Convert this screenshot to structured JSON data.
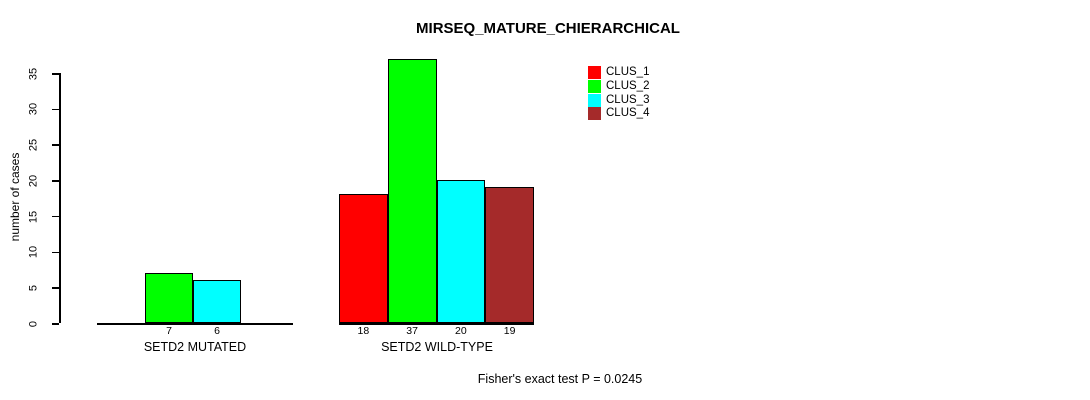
{
  "chart_data": {
    "type": "bar",
    "title": "MIRSEQ_MATURE_CHIERARCHICAL",
    "xlabel": "",
    "ylabel": "number of cases",
    "ylim": [
      0,
      35
    ],
    "yticks": [
      0,
      5,
      10,
      15,
      20,
      25,
      30,
      35
    ],
    "grid": false,
    "legend_position": "top-right",
    "categories": [
      "SETD2 MUTATED",
      "SETD2 WILD-TYPE"
    ],
    "series": [
      {
        "name": "CLUS_1",
        "color": "#ff0000",
        "values": [
          0,
          18
        ],
        "value_labels": [
          "",
          "18"
        ]
      },
      {
        "name": "CLUS_2",
        "color": "#00ff00",
        "values": [
          7,
          37
        ],
        "value_labels": [
          "7",
          "37"
        ]
      },
      {
        "name": "CLUS_3",
        "color": "#00ffff",
        "values": [
          6,
          20
        ],
        "value_labels": [
          "6",
          "20"
        ]
      },
      {
        "name": "CLUS_4",
        "color": "#a52a2a",
        "values": [
          0,
          19
        ],
        "value_labels": [
          "",
          "19"
        ]
      }
    ],
    "bar_border_color": "#000000",
    "annotation": "Fisher's exact test P = 0.0245"
  }
}
